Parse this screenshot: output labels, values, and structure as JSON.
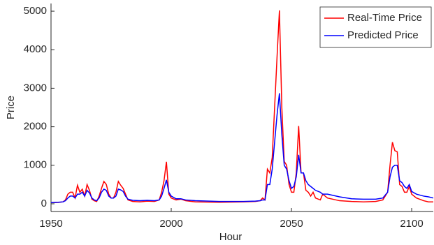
{
  "chart_data": {
    "type": "line",
    "x_label": "Hour",
    "y_label": "Price",
    "x": [
      1950,
      1953,
      1955,
      1956,
      1957,
      1958,
      1959,
      1960,
      1961,
      1962,
      1963,
      1964,
      1965,
      1966,
      1967,
      1968,
      1969,
      1970,
      1971,
      1972,
      1973,
      1974,
      1975,
      1976,
      1977,
      1978,
      1979,
      1980,
      1981,
      1982,
      1984,
      1987,
      1990,
      1993,
      1995,
      1996,
      1997,
      1998,
      1999,
      2000,
      2002,
      2004,
      2006,
      2010,
      2020,
      2030,
      2035,
      2037,
      2038,
      2039,
      2040,
      2041,
      2042,
      2043,
      2044,
      2045,
      2046,
      2047,
      2048,
      2049,
      2050,
      2051,
      2052,
      2053,
      2054,
      2055,
      2056,
      2057,
      2058,
      2059,
      2060,
      2062,
      2063,
      2065,
      2070,
      2075,
      2080,
      2085,
      2088,
      2090,
      2091,
      2092,
      2093,
      2094,
      2095,
      2096,
      2097,
      2098,
      2099,
      2100,
      2102,
      2105,
      2107,
      2109
    ],
    "series": [
      {
        "name": "Real-Time Price",
        "color": "#ff0000",
        "values": [
          30,
          35,
          50,
          100,
          250,
          300,
          300,
          150,
          480,
          300,
          380,
          200,
          500,
          350,
          120,
          80,
          60,
          200,
          400,
          580,
          500,
          250,
          150,
          150,
          300,
          580,
          480,
          400,
          250,
          100,
          60,
          50,
          70,
          60,
          100,
          300,
          600,
          1090,
          250,
          150,
          100,
          120,
          80,
          50,
          40,
          50,
          60,
          80,
          150,
          100,
          900,
          800,
          1200,
          2500,
          3800,
          5020,
          2500,
          1100,
          1000,
          500,
          300,
          300,
          800,
          2020,
          800,
          800,
          350,
          300,
          200,
          300,
          150,
          100,
          250,
          150,
          80,
          60,
          50,
          60,
          100,
          300,
          1000,
          1600,
          1380,
          1350,
          500,
          450,
          300,
          300,
          450,
          250,
          150,
          80,
          50,
          50
        ]
      },
      {
        "name": "Predicted Price",
        "color": "#0000ff",
        "values": [
          30,
          40,
          50,
          80,
          150,
          200,
          200,
          150,
          250,
          250,
          300,
          200,
          350,
          280,
          150,
          100,
          80,
          150,
          300,
          380,
          350,
          200,
          150,
          150,
          200,
          380,
          360,
          320,
          200,
          120,
          90,
          80,
          90,
          80,
          100,
          200,
          400,
          620,
          300,
          200,
          130,
          130,
          100,
          80,
          60,
          60,
          70,
          80,
          100,
          100,
          500,
          500,
          900,
          1600,
          2300,
          2870,
          1800,
          1000,
          900,
          600,
          400,
          450,
          700,
          1270,
          800,
          800,
          600,
          500,
          450,
          400,
          350,
          300,
          250,
          250,
          180,
          130,
          120,
          120,
          150,
          300,
          700,
          950,
          1000,
          1000,
          600,
          550,
          450,
          400,
          500,
          320,
          250,
          200,
          180,
          150
        ]
      }
    ],
    "xlim": [
      1950,
      2109
    ],
    "ylim": [
      -200,
      5200
    ],
    "xticks": [
      1950,
      2000,
      2050,
      2100
    ],
    "yticks": [
      0,
      1000,
      2000,
      3000,
      4000,
      5000
    ],
    "legend": "top-right"
  }
}
